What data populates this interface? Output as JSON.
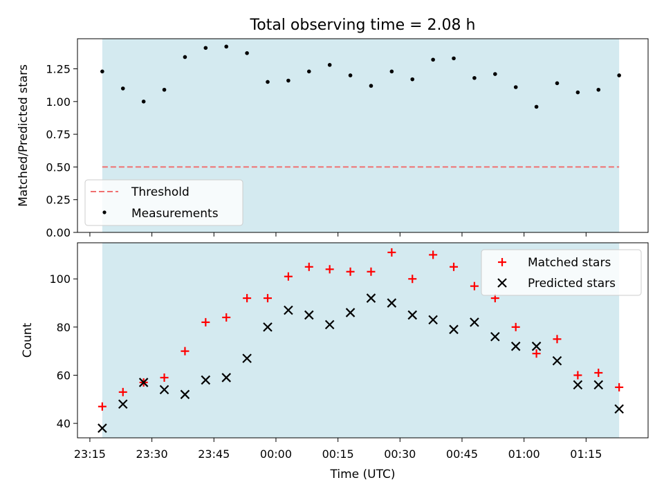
{
  "chart_data": [
    {
      "type": "scatter",
      "title": "Total observing time = 2.08 h",
      "xlabel": "",
      "ylabel": "Matched/Predicted stars",
      "xlim": [
        "23:12",
        "01:30"
      ],
      "ylim": [
        0,
        1.48
      ],
      "yticks": [
        0.0,
        0.25,
        0.5,
        0.75,
        1.0,
        1.25
      ],
      "ytick_labels": [
        "0.00",
        "0.25",
        "0.50",
        "0.75",
        "1.00",
        "1.25"
      ],
      "shaded_span": [
        "23:18",
        "01:23"
      ],
      "shade_color": "#d4eaf0",
      "grid": false,
      "legend_position": "lower left",
      "threshold": {
        "name": "Threshold",
        "value": 0.5,
        "color": "#f07070",
        "style": "dashed"
      },
      "series": [
        {
          "name": "Measurements",
          "marker": "dot",
          "color": "#000000",
          "x": [
            "23:18",
            "23:23",
            "23:28",
            "23:33",
            "23:38",
            "23:43",
            "23:48",
            "23:53",
            "23:58",
            "00:03",
            "00:08",
            "00:13",
            "00:18",
            "00:23",
            "00:28",
            "00:33",
            "00:38",
            "00:43",
            "00:48",
            "00:53",
            "00:58",
            "01:03",
            "01:08",
            "01:13",
            "01:18",
            "01:23"
          ],
          "y": [
            1.23,
            1.1,
            1.0,
            1.09,
            1.34,
            1.41,
            1.42,
            1.37,
            1.15,
            1.16,
            1.23,
            1.28,
            1.2,
            1.12,
            1.23,
            1.17,
            1.32,
            1.33,
            1.18,
            1.21,
            1.11,
            0.96,
            1.14,
            1.07,
            1.09,
            1.2
          ]
        }
      ]
    },
    {
      "type": "scatter",
      "title": "",
      "xlabel": "Time (UTC)",
      "ylabel": "Count",
      "xlim": [
        "23:12",
        "01:30"
      ],
      "ylim": [
        34,
        115
      ],
      "yticks": [
        40,
        60,
        80,
        100
      ],
      "ytick_labels": [
        "40",
        "60",
        "80",
        "100"
      ],
      "xticks": [
        "23:15",
        "23:30",
        "23:45",
        "00:00",
        "00:15",
        "00:30",
        "00:45",
        "01:00",
        "01:15"
      ],
      "shaded_span": [
        "23:18",
        "01:23"
      ],
      "shade_color": "#d4eaf0",
      "grid": false,
      "legend_position": "upper right",
      "series": [
        {
          "name": "Matched stars",
          "marker": "plus",
          "color": "#ff0000",
          "x": [
            "23:18",
            "23:23",
            "23:28",
            "23:33",
            "23:38",
            "23:43",
            "23:48",
            "23:53",
            "23:58",
            "00:03",
            "00:08",
            "00:13",
            "00:18",
            "00:23",
            "00:28",
            "00:33",
            "00:38",
            "00:43",
            "00:48",
            "00:53",
            "00:58",
            "01:03",
            "01:08",
            "01:13",
            "01:18",
            "01:23"
          ],
          "y": [
            47,
            53,
            57,
            59,
            70,
            82,
            84,
            92,
            92,
            101,
            105,
            104,
            103,
            103,
            111,
            100,
            110,
            105,
            97,
            92,
            80,
            69,
            75,
            60,
            61,
            55
          ]
        },
        {
          "name": "Predicted stars",
          "marker": "x",
          "color": "#000000",
          "x": [
            "23:18",
            "23:23",
            "23:28",
            "23:33",
            "23:38",
            "23:43",
            "23:48",
            "23:53",
            "23:58",
            "00:03",
            "00:08",
            "00:13",
            "00:18",
            "00:23",
            "00:28",
            "00:33",
            "00:38",
            "00:43",
            "00:48",
            "00:53",
            "00:58",
            "01:03",
            "01:08",
            "01:13",
            "01:18",
            "01:23"
          ],
          "y": [
            38,
            48,
            57,
            54,
            52,
            58,
            59,
            67,
            80,
            87,
            85,
            81,
            86,
            92,
            90,
            85,
            83,
            79,
            82,
            76,
            72,
            72,
            66,
            56,
            56,
            46
          ]
        }
      ]
    }
  ]
}
